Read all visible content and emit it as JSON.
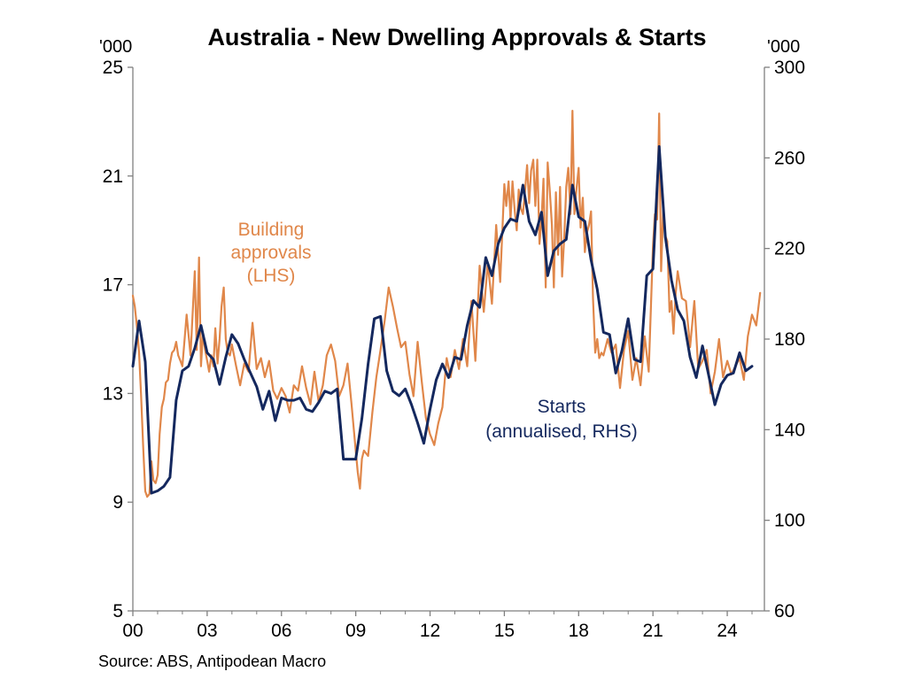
{
  "chart_data": {
    "type": "line",
    "title": "Australia - New Dwelling Approvals & Starts",
    "left_unit": "'000",
    "right_unit": "'000",
    "source": "Source: ABS, Antipodean Macro",
    "x_tick_labels": [
      "00",
      "03",
      "06",
      "09",
      "12",
      "15",
      "18",
      "21",
      "24"
    ],
    "x_range": [
      2000,
      2025.5
    ],
    "y_left_range": [
      5,
      25
    ],
    "y_left_ticks": [
      5,
      9,
      13,
      17,
      21,
      25
    ],
    "y_right_range": [
      60,
      300
    ],
    "y_right_ticks": [
      60,
      100,
      140,
      180,
      220,
      260,
      300
    ],
    "grid": false,
    "colors": {
      "approvals": "#E0874A",
      "starts": "#14285E",
      "axis": "#7F7F7F"
    },
    "annotations": {
      "approvals": [
        "Building",
        "approvals",
        "(LHS)"
      ],
      "starts": [
        "Starts",
        "(annualised, RHS)"
      ]
    },
    "series": [
      {
        "key": "approvals",
        "axis": "left",
        "x": [
          2000.0,
          2000.08,
          2000.17,
          2000.25,
          2000.33,
          2000.42,
          2000.5,
          2000.58,
          2000.67,
          2000.75,
          2000.83,
          2000.92,
          2001.0,
          2001.08,
          2001.17,
          2001.25,
          2001.33,
          2001.42,
          2001.5,
          2001.58,
          2001.67,
          2001.75,
          2001.83,
          2001.92,
          2002.0,
          2002.17,
          2002.33,
          2002.5,
          2002.58,
          2002.67,
          2002.75,
          2002.83,
          2002.92,
          2003.0,
          2003.08,
          2003.17,
          2003.25,
          2003.33,
          2003.42,
          2003.5,
          2003.58,
          2003.67,
          2003.75,
          2003.83,
          2003.92,
          2004.0,
          2004.17,
          2004.33,
          2004.5,
          2004.67,
          2004.83,
          2005.0,
          2005.17,
          2005.33,
          2005.5,
          2005.67,
          2005.83,
          2006.0,
          2006.17,
          2006.33,
          2006.5,
          2006.67,
          2006.83,
          2007.0,
          2007.17,
          2007.33,
          2007.5,
          2007.67,
          2007.83,
          2008.0,
          2008.17,
          2008.33,
          2008.5,
          2008.67,
          2008.83,
          2009.0,
          2009.08,
          2009.17,
          2009.25,
          2009.33,
          2009.5,
          2009.67,
          2009.83,
          2010.0,
          2010.17,
          2010.33,
          2010.5,
          2010.67,
          2010.83,
          2011.0,
          2011.17,
          2011.33,
          2011.5,
          2011.67,
          2011.83,
          2012.0,
          2012.17,
          2012.33,
          2012.5,
          2012.67,
          2012.83,
          2013.0,
          2013.17,
          2013.33,
          2013.5,
          2013.67,
          2013.83,
          2014.0,
          2014.17,
          2014.33,
          2014.5,
          2014.67,
          2014.83,
          2015.0,
          2015.08,
          2015.17,
          2015.25,
          2015.33,
          2015.42,
          2015.5,
          2015.58,
          2015.67,
          2015.75,
          2015.83,
          2015.92,
          2016.0,
          2016.08,
          2016.17,
          2016.25,
          2016.33,
          2016.42,
          2016.5,
          2016.58,
          2016.67,
          2016.75,
          2016.83,
          2016.92,
          2017.0,
          2017.08,
          2017.17,
          2017.25,
          2017.33,
          2017.42,
          2017.5,
          2017.58,
          2017.67,
          2017.75,
          2017.83,
          2017.92,
          2018.0,
          2018.08,
          2018.17,
          2018.25,
          2018.33,
          2018.42,
          2018.5,
          2018.58,
          2018.67,
          2018.75,
          2018.83,
          2018.92,
          2019.0,
          2019.17,
          2019.33,
          2019.5,
          2019.67,
          2019.83,
          2020.0,
          2020.17,
          2020.33,
          2020.5,
          2020.67,
          2020.83,
          2021.0,
          2021.08,
          2021.17,
          2021.25,
          2021.33,
          2021.42,
          2021.5,
          2021.58,
          2021.67,
          2021.75,
          2021.83,
          2021.92,
          2022.0,
          2022.17,
          2022.33,
          2022.5,
          2022.67,
          2022.83,
          2023.0,
          2023.17,
          2023.33,
          2023.5,
          2023.67,
          2023.83,
          2024.0,
          2024.17,
          2024.33,
          2024.5,
          2024.67,
          2024.83,
          2025.0,
          2025.17,
          2025.33
        ],
        "y": [
          16.6,
          16.2,
          15.4,
          14.5,
          13.0,
          11.0,
          9.4,
          9.2,
          9.3,
          10.5,
          9.8,
          9.7,
          10.0,
          11.5,
          12.5,
          12.8,
          13.4,
          13.5,
          14.1,
          14.5,
          14.6,
          14.9,
          14.4,
          14.2,
          14.0,
          15.9,
          14.4,
          17.5,
          14.6,
          18.0,
          14.0,
          15.2,
          14.6,
          14.2,
          13.8,
          14.4,
          14.0,
          15.4,
          14.1,
          15.0,
          16.2,
          16.9,
          15.0,
          14.5,
          14.4,
          14.8,
          14.0,
          13.3,
          14.1,
          13.8,
          15.6,
          13.9,
          14.3,
          13.6,
          14.2,
          13.1,
          12.8,
          13.2,
          12.9,
          12.3,
          13.3,
          13.1,
          14.0,
          13.2,
          12.6,
          13.8,
          12.7,
          13.3,
          14.4,
          14.8,
          14.2,
          12.9,
          13.3,
          14.1,
          12.6,
          10.9,
          10.1,
          9.5,
          10.6,
          10.9,
          10.7,
          12.3,
          13.6,
          14.6,
          15.7,
          16.9,
          16.2,
          15.4,
          14.7,
          14.9,
          13.7,
          12.9,
          14.9,
          13.4,
          12.1,
          11.5,
          11.1,
          11.9,
          12.5,
          14.3,
          13.6,
          14.6,
          13.9,
          15.0,
          14.0,
          16.4,
          14.2,
          17.7,
          16.0,
          17.8,
          16.3,
          19.2,
          17.1,
          20.7,
          19.9,
          20.8,
          19.4,
          20.8,
          19.7,
          19.0,
          20.5,
          19.8,
          19.6,
          20.4,
          21.4,
          20.0,
          21.2,
          21.6,
          19.9,
          21.6,
          18.5,
          19.4,
          20.9,
          16.9,
          21.5,
          20.5,
          19.2,
          16.9,
          20.4,
          18.1,
          20.6,
          17.3,
          18.8,
          20.6,
          21.3,
          19.6,
          23.4,
          19.6,
          20.6,
          21.3,
          19.1,
          20.2,
          18.2,
          18.9,
          19.2,
          19.7,
          16.5,
          14.5,
          15.0,
          14.3,
          14.5,
          14.4,
          15.0,
          14.5,
          14.8,
          13.2,
          14.6,
          15.3,
          13.5,
          14.3,
          13.3,
          15.1,
          13.8,
          18.4,
          19.6,
          19.4,
          23.3,
          17.5,
          19.9,
          18.8,
          18.6,
          16.0,
          16.4,
          15.2,
          16.7,
          17.5,
          16.5,
          16.4,
          14.7,
          16.4,
          13.9,
          14.2,
          14.6,
          13.0,
          13.8,
          15.0,
          13.6,
          14.2,
          13.7,
          14.0,
          14.3,
          13.5,
          15.1,
          15.9,
          15.5,
          16.7
        ]
      },
      {
        "key": "starts",
        "axis": "right",
        "x": [
          2000.0,
          2000.25,
          2000.5,
          2000.75,
          2001.0,
          2001.25,
          2001.5,
          2001.75,
          2002.0,
          2002.25,
          2002.5,
          2002.75,
          2003.0,
          2003.25,
          2003.5,
          2003.75,
          2004.0,
          2004.25,
          2004.5,
          2004.75,
          2005.0,
          2005.25,
          2005.5,
          2005.75,
          2006.0,
          2006.25,
          2006.5,
          2006.75,
          2007.0,
          2007.25,
          2007.5,
          2007.75,
          2008.0,
          2008.25,
          2008.5,
          2008.75,
          2009.0,
          2009.25,
          2009.5,
          2009.75,
          2010.0,
          2010.25,
          2010.5,
          2010.75,
          2011.0,
          2011.25,
          2011.5,
          2011.75,
          2012.0,
          2012.25,
          2012.5,
          2012.75,
          2013.0,
          2013.25,
          2013.5,
          2013.75,
          2014.0,
          2014.25,
          2014.5,
          2014.75,
          2015.0,
          2015.25,
          2015.5,
          2015.75,
          2016.0,
          2016.25,
          2016.5,
          2016.75,
          2017.0,
          2017.25,
          2017.5,
          2017.75,
          2018.0,
          2018.25,
          2018.5,
          2018.75,
          2019.0,
          2019.25,
          2019.5,
          2019.75,
          2020.0,
          2020.25,
          2020.5,
          2020.75,
          2021.0,
          2021.25,
          2021.5,
          2021.75,
          2022.0,
          2022.25,
          2022.5,
          2022.75,
          2023.0,
          2023.25,
          2023.5,
          2023.75,
          2024.0,
          2024.25,
          2024.5,
          2024.75,
          2025.0
        ],
        "y": [
          168,
          188,
          170,
          112,
          113,
          115,
          119,
          153,
          166,
          168,
          176,
          186,
          174,
          171,
          160,
          172,
          182,
          178,
          171,
          165,
          159,
          149,
          157,
          144,
          154,
          153,
          153,
          154,
          149,
          148,
          152,
          157,
          156,
          158,
          127,
          127,
          127,
          145,
          169,
          189,
          190,
          166,
          157,
          155,
          158,
          151,
          143,
          134,
          149,
          162,
          169,
          163,
          172,
          171,
          186,
          197,
          194,
          216,
          208,
          222,
          229,
          233,
          232,
          248,
          232,
          226,
          236,
          208,
          219,
          222,
          224,
          248,
          234,
          232,
          215,
          202,
          183,
          182,
          165,
          175,
          189,
          171,
          170,
          208,
          211,
          265,
          225,
          206,
          193,
          188,
          172,
          163,
          177,
          164,
          151,
          160,
          164,
          165,
          174,
          166,
          168
        ]
      }
    ]
  }
}
